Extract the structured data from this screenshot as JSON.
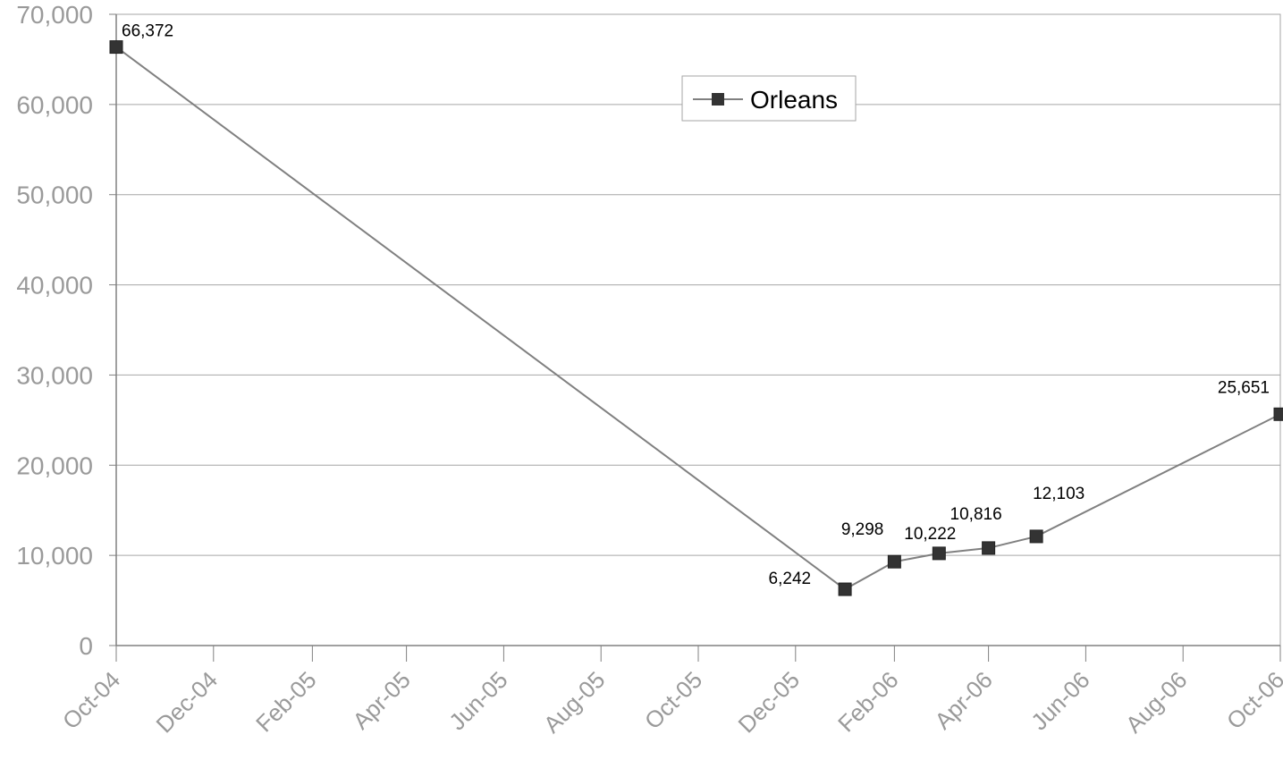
{
  "chart_data": {
    "type": "line",
    "x": [
      "2004-10-01",
      "2006-01-01",
      "2006-02-01",
      "2006-03-01",
      "2006-04-01",
      "2006-05-01",
      "2006-10-01"
    ],
    "series": [
      {
        "name": "Orleans",
        "values": [
          66372,
          6242,
          9298,
          10222,
          10816,
          12103,
          25651
        ],
        "data_labels": [
          "66,372",
          "6,242",
          "9,298",
          "10,222",
          "10,816",
          "12,103",
          "25,651"
        ]
      }
    ],
    "x_ticks": [
      {
        "date": "2004-10-01",
        "label": "Oct-04"
      },
      {
        "date": "2004-12-01",
        "label": "Dec-04"
      },
      {
        "date": "2005-02-01",
        "label": "Feb-05"
      },
      {
        "date": "2005-04-01",
        "label": "Apr-05"
      },
      {
        "date": "2005-06-01",
        "label": "Jun-05"
      },
      {
        "date": "2005-08-01",
        "label": "Aug-05"
      },
      {
        "date": "2005-10-01",
        "label": "Oct-05"
      },
      {
        "date": "2005-12-01",
        "label": "Dec-05"
      },
      {
        "date": "2006-02-01",
        "label": "Feb-06"
      },
      {
        "date": "2006-04-01",
        "label": "Apr-06"
      },
      {
        "date": "2006-06-01",
        "label": "Jun-06"
      },
      {
        "date": "2006-08-01",
        "label": "Aug-06"
      },
      {
        "date": "2006-10-01",
        "label": "Oct-06"
      }
    ],
    "y_ticks": [
      {
        "value": 0,
        "label": "0"
      },
      {
        "value": 10000,
        "label": "10,000"
      },
      {
        "value": 20000,
        "label": "20,000"
      },
      {
        "value": 30000,
        "label": "30,000"
      },
      {
        "value": 40000,
        "label": "40,000"
      },
      {
        "value": 50000,
        "label": "50,000"
      },
      {
        "value": 60000,
        "label": "60,000"
      },
      {
        "value": 70000,
        "label": "70,000"
      }
    ],
    "ylim": [
      0,
      70000
    ],
    "xlim": [
      "2004-10-01",
      "2006-10-01"
    ],
    "grid": "horizontal",
    "legend_position": "top-center",
    "title": "",
    "xlabel": "",
    "ylabel": ""
  },
  "colors": {
    "line": "#808080",
    "marker": "#333333",
    "grid": "#a6a6a6",
    "axis": "#808080",
    "tick_text": "#9a9a9a",
    "label_text": "#000000"
  }
}
